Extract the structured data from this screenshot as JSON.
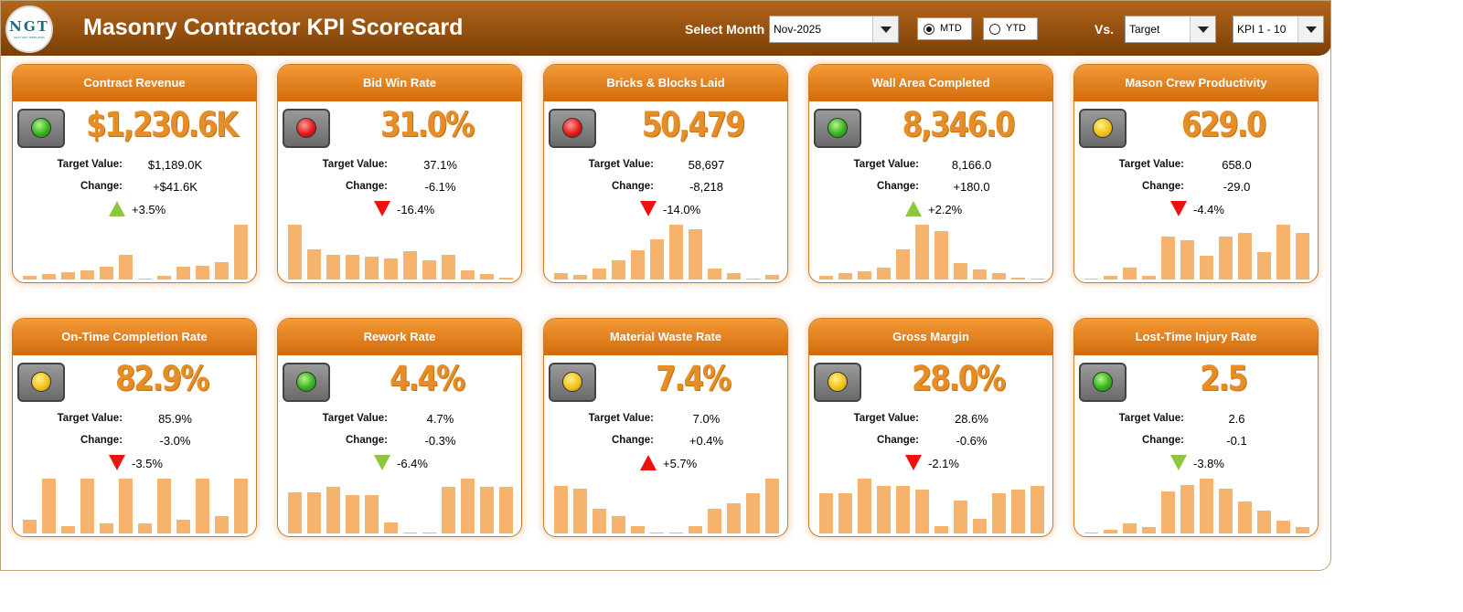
{
  "header": {
    "title": "Masonry Contractor KPI Scorecard",
    "logo_text": "NGT",
    "logo_sub": "NEXT GEN TEMPLATES",
    "select_month_label": "Select Month",
    "month_value": "Nov-2025",
    "mtd_label": "MTD",
    "ytd_label": "YTD",
    "mtd_selected": true,
    "vs_label": "Vs.",
    "vs_value": "Target",
    "kpi_range_value": "KPI 1 - 10"
  },
  "labels": {
    "target": "Target Value:",
    "change": "Change:"
  },
  "colors": {
    "header_dark": "#7b3e06",
    "card_head": "#e07a1a",
    "value_orange": "#e58d26",
    "bar": "#f5b36e",
    "up_green": "#8dc63f",
    "down_red": "#ee1111"
  },
  "kpis": [
    {
      "title": "Contract Revenue",
      "light": "green",
      "value": "$1,230.6K",
      "target": "$1,189.0K",
      "change": "+$41.6K",
      "pct": "+3.5%",
      "arrow": "up-green",
      "spark": [
        2,
        3,
        4,
        5,
        7,
        14,
        0,
        2,
        7,
        8,
        10,
        31
      ]
    },
    {
      "title": "Bid Win Rate",
      "light": "red",
      "value": "31.0%",
      "target": "37.1%",
      "change": "-6.1%",
      "pct": "-16.4%",
      "arrow": "down-red",
      "spark": [
        31,
        17,
        14,
        14,
        13,
        12,
        16,
        11,
        14,
        5,
        3,
        1
      ]
    },
    {
      "title": "Bricks & Blocks Laid",
      "light": "red",
      "value": "50,479",
      "target": "58,697",
      "change": "-8,218",
      "pct": "-14.0%",
      "arrow": "down-red",
      "spark": [
        3,
        2,
        5,
        9,
        14,
        19,
        26,
        24,
        5,
        3,
        0,
        2
      ]
    },
    {
      "title": "Wall Area Completed",
      "light": "green",
      "value": "8,346.0",
      "target": "8,166.0",
      "change": "+180.0",
      "pct": "+2.2%",
      "arrow": "up-green",
      "spark": [
        2,
        3,
        4,
        6,
        15,
        27,
        24,
        8,
        5,
        3,
        1,
        0
      ]
    },
    {
      "title": "Mason Crew Productivity",
      "light": "yellow",
      "value": "629.0",
      "target": "658.0",
      "change": "-29.0",
      "pct": "-4.4%",
      "arrow": "down-red",
      "spark": [
        0,
        1,
        3,
        1,
        11,
        10,
        6,
        11,
        12,
        7,
        14,
        12
      ]
    },
    {
      "title": "On-Time Completion Rate",
      "light": "yellow",
      "value": "82.9%",
      "target": "85.9%",
      "change": "-3.0%",
      "pct": "-3.5%",
      "arrow": "down-red",
      "spark": [
        4,
        16,
        2,
        16,
        3,
        16,
        3,
        16,
        4,
        16,
        5,
        16
      ]
    },
    {
      "title": "Rework Rate",
      "light": "green",
      "value": "4.4%",
      "target": "4.7%",
      "change": "-0.3%",
      "pct": "-6.4%",
      "arrow": "down-green",
      "spark": [
        15,
        15,
        17,
        14,
        14,
        4,
        0,
        0,
        17,
        20,
        17,
        17
      ]
    },
    {
      "title": "Material Waste Rate",
      "light": "yellow",
      "value": "7.4%",
      "target": "7.0%",
      "change": "+0.4%",
      "pct": "+5.7%",
      "arrow": "up-red",
      "spark": [
        19,
        18,
        10,
        7,
        3,
        0,
        0,
        3,
        10,
        12,
        16,
        22
      ]
    },
    {
      "title": "Gross Margin",
      "light": "yellow",
      "value": "28.0%",
      "target": "28.6%",
      "change": "-0.6%",
      "pct": "-2.1%",
      "arrow": "down-red",
      "spark": [
        11,
        11,
        15,
        13,
        13,
        12,
        2,
        9,
        4,
        11,
        12,
        13
      ]
    },
    {
      "title": "Lost-Time Injury Rate",
      "light": "green",
      "value": "2.5",
      "target": "2.6",
      "change": "-0.1",
      "pct": "-3.8%",
      "arrow": "down-green",
      "spark": [
        0,
        1,
        3,
        2,
        13,
        15,
        17,
        14,
        10,
        7,
        4,
        2
      ]
    }
  ]
}
